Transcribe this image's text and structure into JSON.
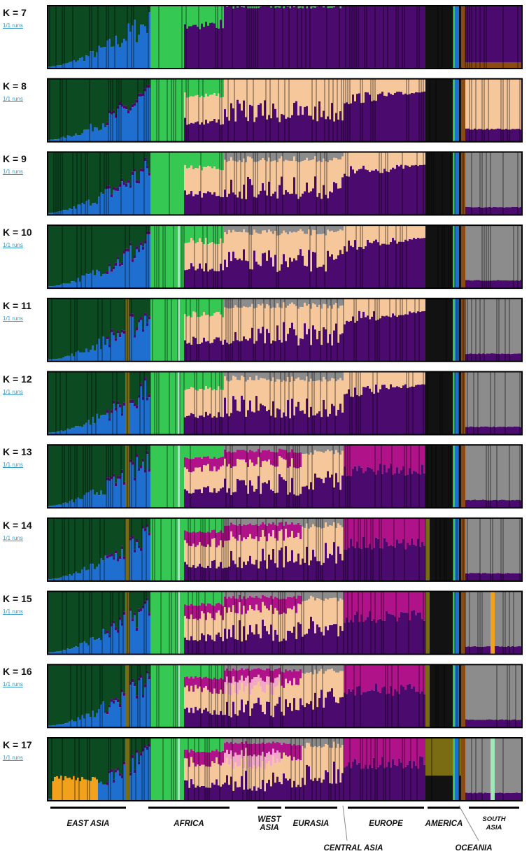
{
  "panels": [
    {
      "label": "K = 7",
      "link": "1/1 runs"
    },
    {
      "label": "K = 8",
      "link": "1/1 runs"
    },
    {
      "label": "K = 9",
      "link": "1/1 runs"
    },
    {
      "label": "K = 10",
      "link": "1/1 runs"
    },
    {
      "label": "K = 11",
      "link": "1/1 runs"
    },
    {
      "label": "K = 12",
      "link": "1/1 runs"
    },
    {
      "label": "K = 13",
      "link": "1/1 runs"
    },
    {
      "label": "K = 14",
      "link": "1/1 runs"
    },
    {
      "label": "K = 15",
      "link": "1/1 runs"
    },
    {
      "label": "K = 16",
      "link": "1/1 runs"
    },
    {
      "label": "K = 17",
      "link": "1/1 runs"
    }
  ],
  "regions": [
    {
      "label": "EAST ASIA"
    },
    {
      "label": "AFRICA"
    },
    {
      "label": "WEST ASIA"
    },
    {
      "label": "EURASIA"
    },
    {
      "label": "EUROPE"
    },
    {
      "label": "AMERICA"
    },
    {
      "label": "SOUTH ASIA"
    }
  ],
  "callouts": [
    {
      "label": "CENTRAL ASIA"
    },
    {
      "label": "OCEANIA"
    }
  ]
}
